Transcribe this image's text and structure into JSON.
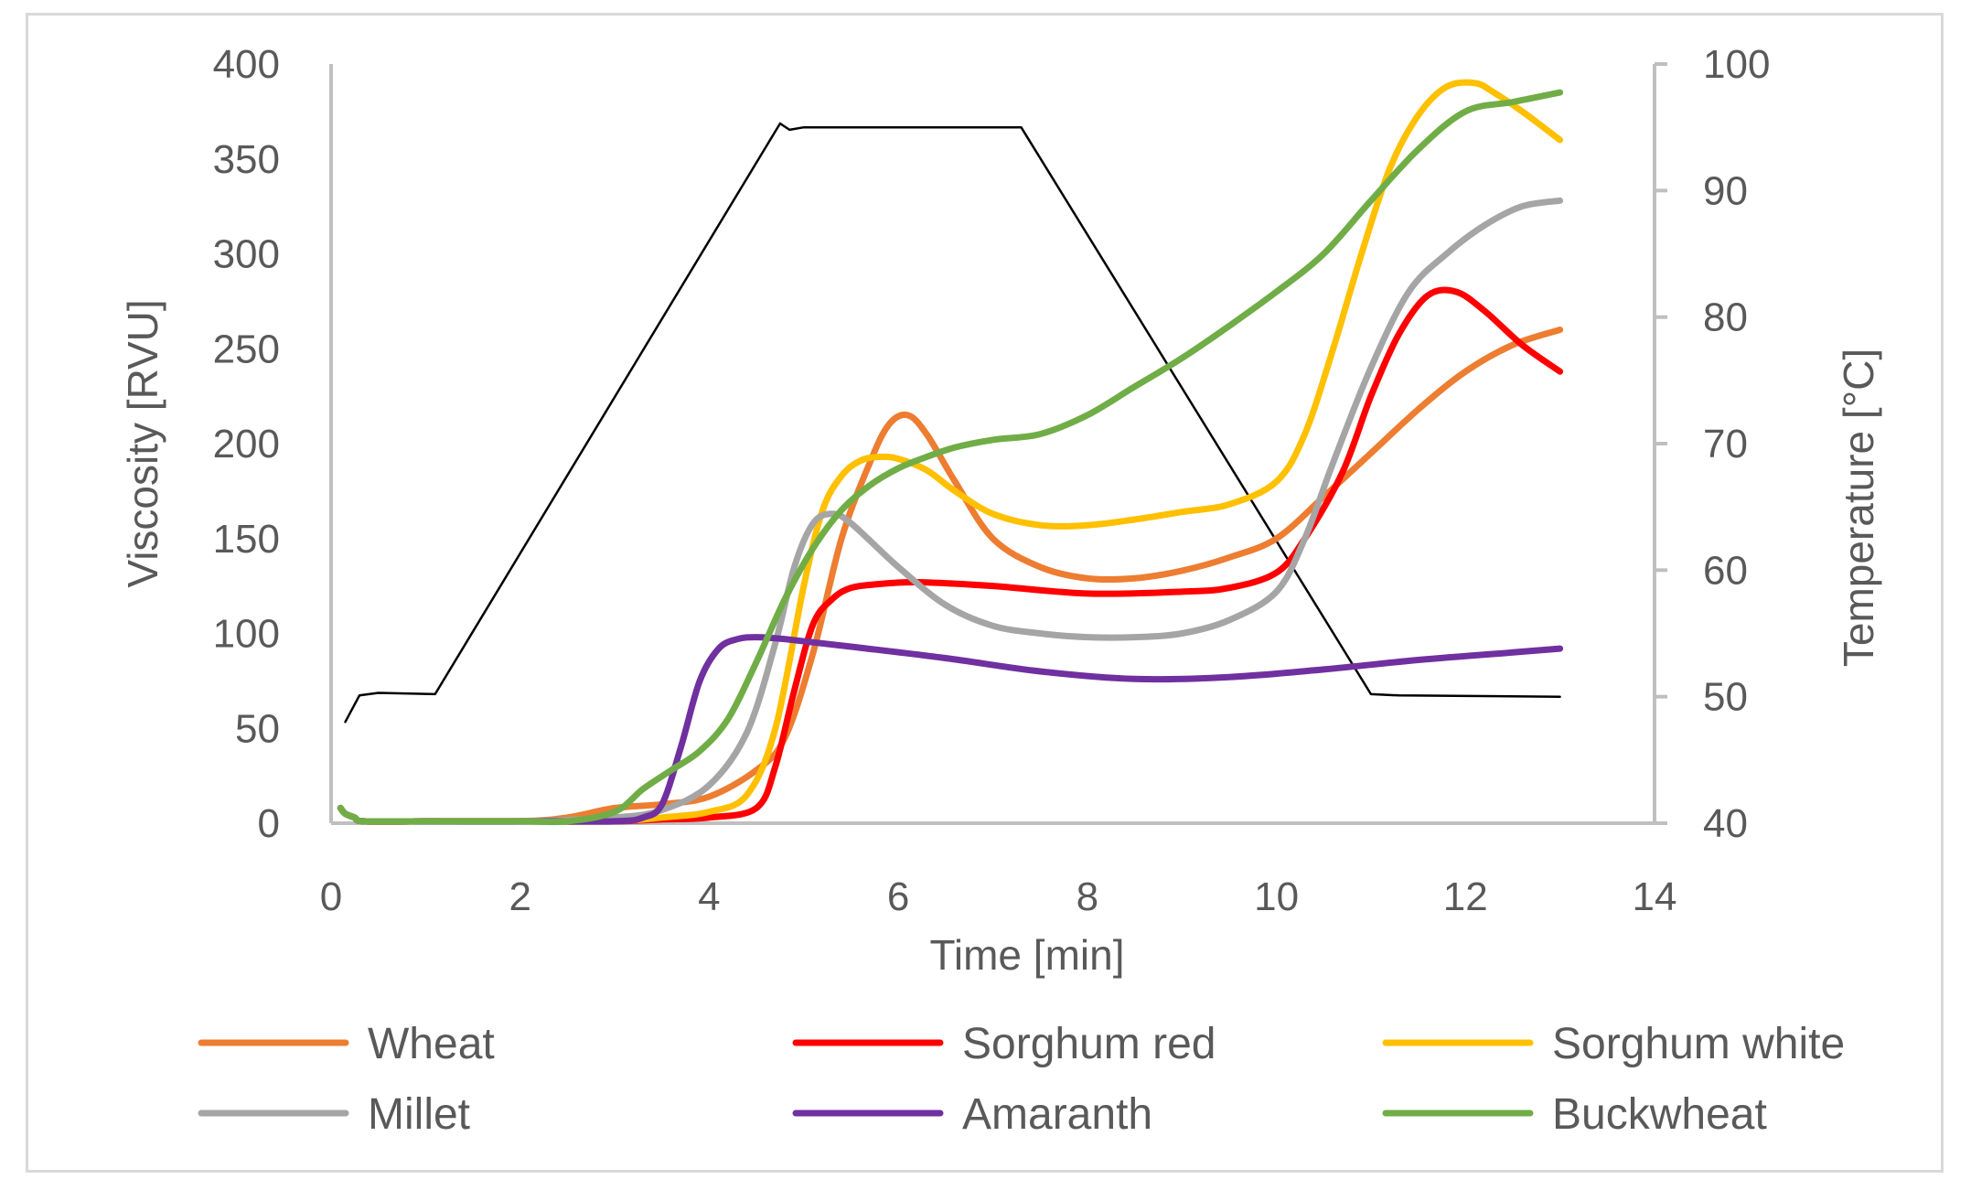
{
  "chart_data": {
    "type": "line",
    "title": "",
    "xlabel": "Time [min]",
    "ylabel": "Viscosity [RVU]",
    "y2label": "Temperature [°C]",
    "xlim": [
      0,
      14
    ],
    "ylim": [
      0,
      400
    ],
    "y2lim": [
      40,
      100
    ],
    "xticks": [
      "0",
      "2",
      "4",
      "6",
      "8",
      "10",
      "12",
      "14"
    ],
    "yticks": [
      "0",
      "50",
      "100",
      "150",
      "200",
      "250",
      "300",
      "350",
      "400"
    ],
    "y2ticks": [
      "40",
      "50",
      "60",
      "70",
      "80",
      "90",
      "100"
    ],
    "legend_position": "bottom",
    "series": [
      {
        "name": "Wheat",
        "color": "#ED7D31",
        "axis": "left",
        "x": [
          0.1,
          0.15,
          0.25,
          0.35,
          1,
          2,
          2.5,
          3,
          3.5,
          4,
          4.5,
          4.8,
          5.1,
          5.4,
          5.7,
          5.9,
          6.1,
          6.3,
          6.6,
          7,
          7.5,
          8,
          8.5,
          9,
          9.5,
          10,
          10.5,
          11,
          11.5,
          12,
          12.5,
          13
        ],
        "values": [
          8,
          5,
          3,
          1,
          1,
          1,
          3,
          8,
          10,
          14,
          28,
          45,
          90,
          150,
          190,
          210,
          215,
          205,
          180,
          150,
          135,
          129,
          129,
          133,
          140,
          150,
          172,
          195,
          218,
          238,
          252,
          260
        ]
      },
      {
        "name": "Sorghum red",
        "color": "#FF0000",
        "axis": "left",
        "x": [
          0.1,
          0.15,
          0.25,
          0.35,
          1,
          2,
          3,
          3.5,
          4,
          4.5,
          4.7,
          4.9,
          5.1,
          5.3,
          5.5,
          5.8,
          6.2,
          7,
          8,
          9,
          9.5,
          10,
          10.3,
          10.7,
          11,
          11.3,
          11.6,
          11.9,
          12.2,
          12.6,
          13
        ],
        "values": [
          8,
          5,
          3,
          1,
          1,
          1,
          1,
          2,
          3,
          8,
          30,
          70,
          105,
          118,
          124,
          126,
          127,
          125,
          121,
          122,
          124,
          132,
          150,
          185,
          225,
          258,
          278,
          280,
          270,
          252,
          238
        ]
      },
      {
        "name": "Sorghum white",
        "color": "#FFC000",
        "axis": "left",
        "x": [
          0.1,
          0.15,
          0.25,
          0.35,
          1,
          2,
          3,
          3.5,
          4,
          4.4,
          4.7,
          5,
          5.2,
          5.4,
          5.6,
          5.8,
          6,
          6.3,
          6.6,
          7,
          7.5,
          8,
          8.5,
          9,
          9.5,
          10,
          10.3,
          10.6,
          10.9,
          11.2,
          11.5,
          11.8,
          12.1,
          12.3,
          12.6,
          13
        ],
        "values": [
          8,
          5,
          3,
          1,
          1,
          1,
          1,
          3,
          6,
          15,
          50,
          125,
          165,
          183,
          191,
          193,
          192,
          186,
          175,
          163,
          157,
          157,
          160,
          164,
          168,
          180,
          205,
          250,
          300,
          345,
          373,
          388,
          390,
          385,
          375,
          360
        ]
      },
      {
        "name": "Millet",
        "color": "#A5A5A5",
        "axis": "left",
        "x": [
          0.1,
          0.15,
          0.25,
          0.35,
          1,
          2,
          3,
          3.5,
          4,
          4.4,
          4.7,
          4.9,
          5.1,
          5.3,
          5.5,
          6,
          6.5,
          7,
          7.5,
          8,
          8.5,
          9,
          9.5,
          10,
          10.3,
          10.6,
          11,
          11.4,
          11.8,
          12.2,
          12.6,
          13
        ],
        "values": [
          8,
          5,
          3,
          1,
          1,
          1,
          3,
          7,
          20,
          48,
          95,
          135,
          158,
          163,
          158,
          135,
          115,
          104,
          100,
          98,
          98,
          100,
          107,
          122,
          150,
          190,
          240,
          280,
          300,
          315,
          325,
          328
        ]
      },
      {
        "name": "Amaranth",
        "color": "#7030A0",
        "axis": "left",
        "x": [
          0.1,
          0.15,
          0.25,
          0.35,
          1,
          2,
          3,
          3.3,
          3.5,
          3.7,
          3.9,
          4.1,
          4.3,
          4.5,
          4.8,
          5.5,
          6.5,
          7.5,
          8.5,
          9.5,
          10.5,
          11.5,
          12.5,
          13
        ],
        "values": [
          8,
          5,
          3,
          1,
          1,
          1,
          1,
          3,
          10,
          40,
          75,
          92,
          97,
          98,
          97,
          93,
          87,
          80,
          76,
          77,
          81,
          86,
          90,
          92
        ]
      },
      {
        "name": "Buckwheat",
        "color": "#70AD47",
        "axis": "left",
        "x": [
          0.1,
          0.15,
          0.25,
          0.35,
          1,
          2,
          2.5,
          3,
          3.3,
          3.6,
          3.9,
          4.2,
          4.5,
          4.8,
          5.1,
          5.4,
          5.7,
          6,
          6.3,
          6.6,
          7,
          7.5,
          8,
          8.5,
          9,
          9.5,
          10,
          10.5,
          11,
          11.5,
          12,
          12.5,
          13
        ],
        "values": [
          8,
          5,
          3,
          1,
          1,
          1,
          1,
          6,
          18,
          28,
          38,
          55,
          85,
          118,
          145,
          165,
          178,
          187,
          193,
          198,
          202,
          205,
          215,
          230,
          245,
          262,
          280,
          300,
          328,
          355,
          375,
          380,
          385
        ]
      },
      {
        "name": "Temperature",
        "color": "#000000",
        "axis": "right",
        "in_legend": false,
        "x": [
          0.15,
          0.3,
          0.5,
          1.1,
          4.75,
          4.85,
          5.0,
          7.3,
          11.0,
          11.3,
          13
        ],
        "values": [
          48,
          50.1,
          50.3,
          50.2,
          95.3,
          94.8,
          95,
          95,
          50.2,
          50.1,
          50
        ]
      }
    ]
  }
}
